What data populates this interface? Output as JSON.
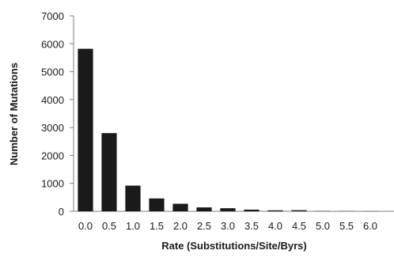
{
  "chart_data": {
    "type": "bar",
    "title": "",
    "xlabel": "Rate (Substitutions/Site/Byrs)",
    "ylabel": "Number of Mutations",
    "categories": [
      "0.0",
      "0.5",
      "1.0",
      "1.5",
      "2.0",
      "2.5",
      "3.0",
      "3.5",
      "4.0",
      "4.5",
      "5.0",
      "5.5",
      "6.0"
    ],
    "values": [
      5820,
      2800,
      920,
      460,
      270,
      140,
      110,
      60,
      35,
      40,
      10,
      8,
      5
    ],
    "ylim": [
      0,
      7000
    ],
    "yticks": [
      "0",
      "1000",
      "2000",
      "3000",
      "4000",
      "5000",
      "6000",
      "7000"
    ],
    "grid": false,
    "bar_color": "#1a1a1a"
  }
}
